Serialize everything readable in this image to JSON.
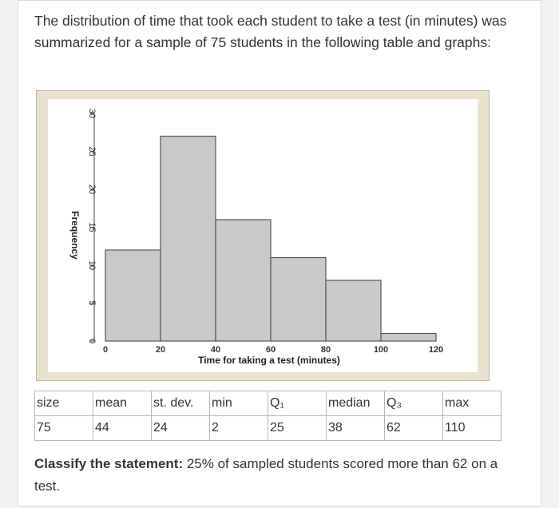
{
  "question": {
    "text": "The distribution of time that took each student to take a test (in minutes) was summarized for a sample of 75 students in the following table and graphs:"
  },
  "chart_data": {
    "type": "bar",
    "subtype": "histogram",
    "xlabel": "Time for taking a test (minutes)",
    "ylabel": "Frequency",
    "bins": [
      [
        0,
        20
      ],
      [
        20,
        40
      ],
      [
        40,
        60
      ],
      [
        60,
        80
      ],
      [
        80,
        100
      ],
      [
        100,
        120
      ]
    ],
    "values": [
      12,
      27,
      16,
      11,
      8,
      1
    ],
    "xticks": [
      0,
      20,
      40,
      60,
      80,
      100,
      120
    ],
    "yticks": [
      0,
      5,
      10,
      15,
      20,
      25,
      30
    ],
    "xlim": [
      0,
      120
    ],
    "ylim": [
      0,
      30
    ],
    "grid": false,
    "colors": {
      "bar_fill": "#c9c9c9",
      "bar_stroke": "#555555",
      "plot_bg": "#ffffff",
      "frame_bg": "#e9e2cf"
    }
  },
  "stats_table": {
    "headers": [
      "size",
      "mean",
      "st. dev.",
      "min",
      "Q₁",
      "median",
      "Q₃",
      "max"
    ],
    "values": [
      "75",
      "44",
      "24",
      "2",
      "25",
      "38",
      "62",
      "110"
    ]
  },
  "classify": {
    "bold": "Classify the statement:",
    "text": " 25% of sampled students scored more than 62 on a test."
  }
}
